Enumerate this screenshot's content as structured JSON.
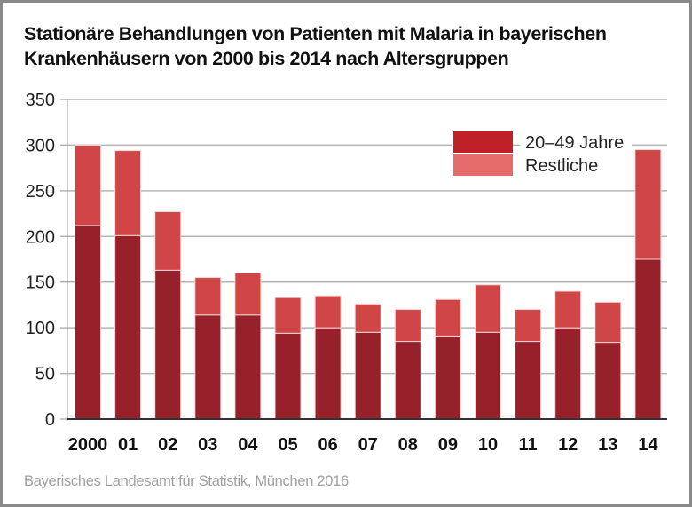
{
  "chart_data": {
    "type": "bar",
    "stacked": true,
    "title": "Stationäre Behandlungen von Patienten mit Malaria in bayerischen Krankenhäusern von 2000 bis 2014 nach Altersgruppen",
    "title_lines": [
      "Stationäre Behandlungen von Patienten mit Malaria in bayerischen",
      "Krankenhäusern von 2000 bis 2014 nach Altersgruppen"
    ],
    "xlabel": "",
    "ylabel": "",
    "categories": [
      "2000",
      "01",
      "02",
      "03",
      "04",
      "05",
      "06",
      "07",
      "08",
      "09",
      "10",
      "11",
      "12",
      "13",
      "14"
    ],
    "series": [
      {
        "name": "20–49 Jahre",
        "color": "#96212b",
        "legend_color": "#c02127",
        "values": [
          212,
          201,
          163,
          114,
          114,
          94,
          100,
          95,
          85,
          91,
          95,
          85,
          100,
          84,
          175
        ]
      },
      {
        "name": "Restliche",
        "color": "#d04545",
        "legend_color": "#e56c6a",
        "values": [
          88,
          93,
          64,
          41,
          46,
          39,
          35,
          31,
          35,
          40,
          52,
          35,
          40,
          44,
          120
        ]
      }
    ],
    "totals": [
      300,
      294,
      227,
      155,
      160,
      133,
      135,
      126,
      120,
      131,
      147,
      120,
      140,
      128,
      295
    ],
    "ylim": [
      0,
      350
    ],
    "yticks": [
      "0",
      "50",
      "100",
      "150",
      "200",
      "250",
      "300",
      "350"
    ],
    "ytick_values": [
      0,
      50,
      100,
      150,
      200,
      250,
      300,
      350
    ],
    "grid": true,
    "legend_position": "top-right"
  },
  "source": "Bayerisches Landesamt für Statistik, München 2016"
}
